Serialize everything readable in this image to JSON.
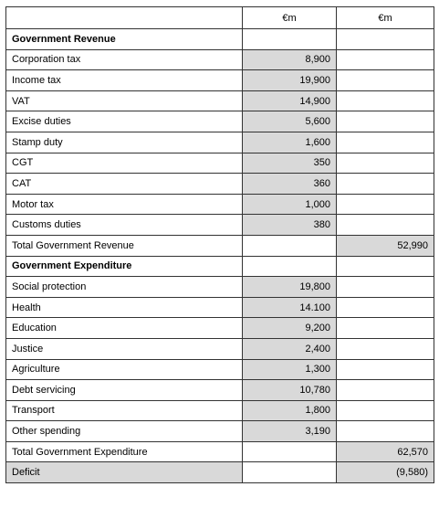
{
  "header": {
    "col1": "",
    "col2": "€m",
    "col3": "€m"
  },
  "revenue": {
    "heading": "Government Revenue",
    "items": [
      {
        "label": "Corporation tax",
        "value": "8,900"
      },
      {
        "label": "Income tax",
        "value": "19,900"
      },
      {
        "label": "VAT",
        "value": "14,900"
      },
      {
        "label": "Excise duties",
        "value": "5,600"
      },
      {
        "label": "Stamp duty",
        "value": "1,600"
      },
      {
        "label": "CGT",
        "value": "350"
      },
      {
        "label": "CAT",
        "value": "360"
      },
      {
        "label": "Motor tax",
        "value": "1,000"
      },
      {
        "label": "Customs duties",
        "value": "380"
      }
    ],
    "total_label": "Total Government Revenue",
    "total_value": "52,990"
  },
  "expenditure": {
    "heading": "Government Expenditure",
    "items": [
      {
        "label": "Social protection",
        "value": "19,800"
      },
      {
        "label": "Health",
        "value": "14.100"
      },
      {
        "label": "Education",
        "value": "9,200"
      },
      {
        "label": "Justice",
        "value": "2,400"
      },
      {
        "label": "Agriculture",
        "value": "1,300"
      },
      {
        "label": "Debt servicing",
        "value": "10,780"
      },
      {
        "label": "Transport",
        "value": "1,800"
      },
      {
        "label": "Other spending",
        "value": "3,190"
      }
    ],
    "total_label": "Total Government Expenditure",
    "total_value": "62,570"
  },
  "deficit": {
    "label": "Deficit",
    "value": "(9,580)"
  },
  "colors": {
    "shade": "#d9d9d9",
    "border": "#333333"
  }
}
